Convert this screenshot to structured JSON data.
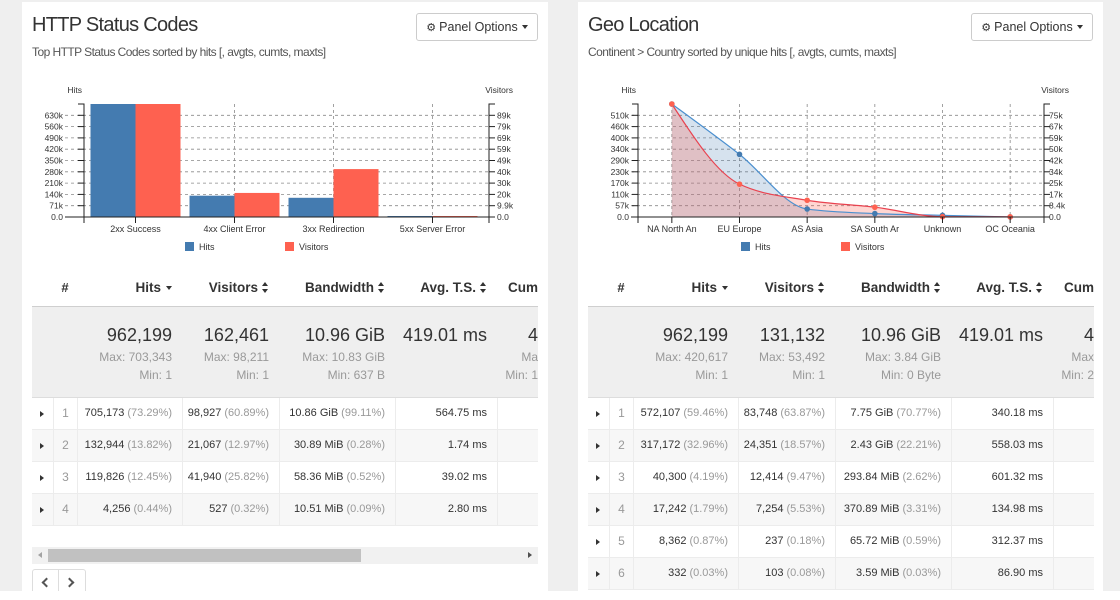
{
  "panels": [
    {
      "title": "HTTP Status Codes",
      "subtitle": "Top HTTP Status Codes sorted by hits [, avgts, cumts, maxts]",
      "options_label": "Panel Options",
      "options_icon": "gear-icon",
      "options_caret_icon": "caret-down-icon",
      "table": {
        "headers": {
          "num": "#",
          "hits": "Hits",
          "visitors": "Visitors",
          "bandwidth": "Bandwidth",
          "avgts": "Avg. T.S.",
          "cumts": "Cum"
        },
        "sort": {
          "hits": "desc",
          "visitors": "none",
          "bandwidth": "none",
          "avgts": "none"
        },
        "summary": {
          "hits": {
            "total": "962,199",
            "max": "Max: 703,343",
            "min": "Min: 1"
          },
          "visitors": {
            "total": "162,461",
            "max": "Max: 98,211",
            "min": "Min: 1"
          },
          "bandwidth": {
            "total": "10.96 GiB",
            "max": "Max: 10.83 GiB",
            "min": "Min: 637 B"
          },
          "avgts": {
            "total": "419.01 ms"
          },
          "cumts": {
            "total": "4",
            "max": "Ma",
            "min": "Min: 1"
          }
        },
        "rows": [
          {
            "num": "1",
            "hits": "705,173",
            "hits_pct": "(73.29%)",
            "visitors": "98,927",
            "visitors_pct": "(60.89%)",
            "bandwidth": "10.86 GiB",
            "bandwidth_pct": "(99.11%)",
            "avgts": "564.75 ms"
          },
          {
            "num": "2",
            "hits": "132,944",
            "hits_pct": "(13.82%)",
            "visitors": "21,067",
            "visitors_pct": "(12.97%)",
            "bandwidth": "30.89 MiB",
            "bandwidth_pct": "(0.28%)",
            "avgts": "1.74 ms"
          },
          {
            "num": "3",
            "hits": "119,826",
            "hits_pct": "(12.45%)",
            "visitors": "41,940",
            "visitors_pct": "(25.82%)",
            "bandwidth": "58.36 MiB",
            "bandwidth_pct": "(0.52%)",
            "avgts": "39.02 ms"
          },
          {
            "num": "4",
            "hits": "4,256",
            "hits_pct": "(0.44%)",
            "visitors": "527",
            "visitors_pct": "(0.32%)",
            "bandwidth": "10.51 MiB",
            "bandwidth_pct": "(0.09%)",
            "avgts": "2.80 ms"
          }
        ]
      },
      "horizontal_scroll": {
        "position_pct": 0,
        "visible_pct": 66
      },
      "pager": {
        "prev_icon": "chevron-left-icon",
        "next_icon": "chevron-right-icon"
      }
    },
    {
      "title": "Geo Location",
      "subtitle": "Continent > Country sorted by unique hits [, avgts, cumts, maxts]",
      "options_label": "Panel Options",
      "options_icon": "gear-icon",
      "options_caret_icon": "caret-down-icon",
      "table": {
        "headers": {
          "num": "#",
          "hits": "Hits",
          "visitors": "Visitors",
          "bandwidth": "Bandwidth",
          "avgts": "Avg. T.S.",
          "cumts": "Cum"
        },
        "sort": {
          "hits": "desc",
          "visitors": "none",
          "bandwidth": "none",
          "avgts": "none"
        },
        "summary": {
          "hits": {
            "total": "962,199",
            "max": "Max: 420,617",
            "min": "Min: 1"
          },
          "visitors": {
            "total": "131,132",
            "max": "Max: 53,492",
            "min": "Min: 1"
          },
          "bandwidth": {
            "total": "10.96 GiB",
            "max": "Max: 3.84 GiB",
            "min": "Min: 0 Byte"
          },
          "avgts": {
            "total": "419.01 ms"
          },
          "cumts": {
            "total": "4",
            "max": "Max",
            "min": "Min: 2"
          }
        },
        "rows": [
          {
            "num": "1",
            "hits": "572,107",
            "hits_pct": "(59.46%)",
            "visitors": "83,748",
            "visitors_pct": "(63.87%)",
            "bandwidth": "7.75 GiB",
            "bandwidth_pct": "(70.77%)",
            "avgts": "340.18 ms"
          },
          {
            "num": "2",
            "hits": "317,172",
            "hits_pct": "(32.96%)",
            "visitors": "24,351",
            "visitors_pct": "(18.57%)",
            "bandwidth": "2.43 GiB",
            "bandwidth_pct": "(22.21%)",
            "avgts": "558.03 ms"
          },
          {
            "num": "3",
            "hits": "40,300",
            "hits_pct": "(4.19%)",
            "visitors": "12,414",
            "visitors_pct": "(9.47%)",
            "bandwidth": "293.84 MiB",
            "bandwidth_pct": "(2.62%)",
            "avgts": "601.32 ms"
          },
          {
            "num": "4",
            "hits": "17,242",
            "hits_pct": "(1.79%)",
            "visitors": "7,254",
            "visitors_pct": "(5.53%)",
            "bandwidth": "370.89 MiB",
            "bandwidth_pct": "(3.31%)",
            "avgts": "134.98 ms"
          },
          {
            "num": "5",
            "hits": "8,362",
            "hits_pct": "(0.87%)",
            "visitors": "237",
            "visitors_pct": "(0.18%)",
            "bandwidth": "65.72 MiB",
            "bandwidth_pct": "(0.59%)",
            "avgts": "312.37 ms"
          },
          {
            "num": "6",
            "hits": "332",
            "hits_pct": "(0.03%)",
            "visitors": "103",
            "visitors_pct": "(0.08%)",
            "bandwidth": "3.59 MiB",
            "bandwidth_pct": "(0.03%)",
            "avgts": "86.90 ms"
          }
        ]
      }
    }
  ],
  "chart_data": [
    {
      "type": "bar",
      "categories": [
        "2xx Success",
        "4xx Client Error",
        "3xx Redirection",
        "5xx Server Error"
      ],
      "series": [
        {
          "name": "Hits",
          "axis": "left",
          "color": "#447bb0",
          "values": [
            705173,
            132944,
            119826,
            4256
          ]
        },
        {
          "name": "Visitors",
          "axis": "right",
          "color": "#fe6150",
          "values": [
            98927,
            21067,
            41940,
            527
          ]
        }
      ],
      "ylabel": "Hits",
      "y2label": "Visitors",
      "ylim": [
        0,
        705173
      ],
      "y2lim": [
        0,
        98927
      ],
      "yticks": [
        "0.0",
        "71k",
        "140k",
        "210k",
        "280k",
        "350k",
        "420k",
        "490k",
        "560k",
        "630k"
      ],
      "ytick_values": [
        0,
        70517,
        141035,
        211552,
        282069,
        352587,
        423104,
        493621,
        564138,
        634656
      ],
      "y2ticks": [
        "0.0",
        "9.9k",
        "20k",
        "30k",
        "40k",
        "49k",
        "59k",
        "69k",
        "79k",
        "89k"
      ],
      "y2tick_values": [
        0,
        9893,
        19785,
        29678,
        39571,
        49464,
        59356,
        69249,
        79142,
        89034
      ],
      "grid": true,
      "legend": "bottom"
    },
    {
      "type": "area",
      "categories": [
        "NA North An",
        "EU Europe",
        "AS Asia",
        "SA South Ar",
        "Unknown",
        "OC Oceania"
      ],
      "series": [
        {
          "name": "Hits",
          "axis": "left",
          "color": "#447bb0",
          "line_color": "#4a8fcf",
          "values": [
            572107,
            317172,
            40300,
            17242,
            8362,
            332
          ]
        },
        {
          "name": "Visitors",
          "axis": "right",
          "color": "#fe6150",
          "line_color": "#e9424f",
          "values": [
            83748,
            24351,
            12414,
            7254,
            237,
            103
          ]
        }
      ],
      "ylabel": "Hits",
      "y2label": "Visitors",
      "ylim": [
        0,
        572107
      ],
      "y2lim": [
        0,
        83748
      ],
      "yticks": [
        "0.0",
        "57k",
        "110k",
        "170k",
        "230k",
        "290k",
        "340k",
        "400k",
        "460k",
        "510k"
      ],
      "ytick_values": [
        0,
        57211,
        114421,
        171632,
        228843,
        286054,
        343264,
        400475,
        457686,
        514896
      ],
      "y2ticks": [
        "0.0",
        "8.4k",
        "17k",
        "25k",
        "34k",
        "42k",
        "50k",
        "59k",
        "67k",
        "75k"
      ],
      "y2tick_values": [
        0,
        8375,
        16750,
        25124,
        33499,
        41874,
        50249,
        58624,
        66998,
        75373
      ],
      "grid": true,
      "legend": "bottom"
    }
  ]
}
